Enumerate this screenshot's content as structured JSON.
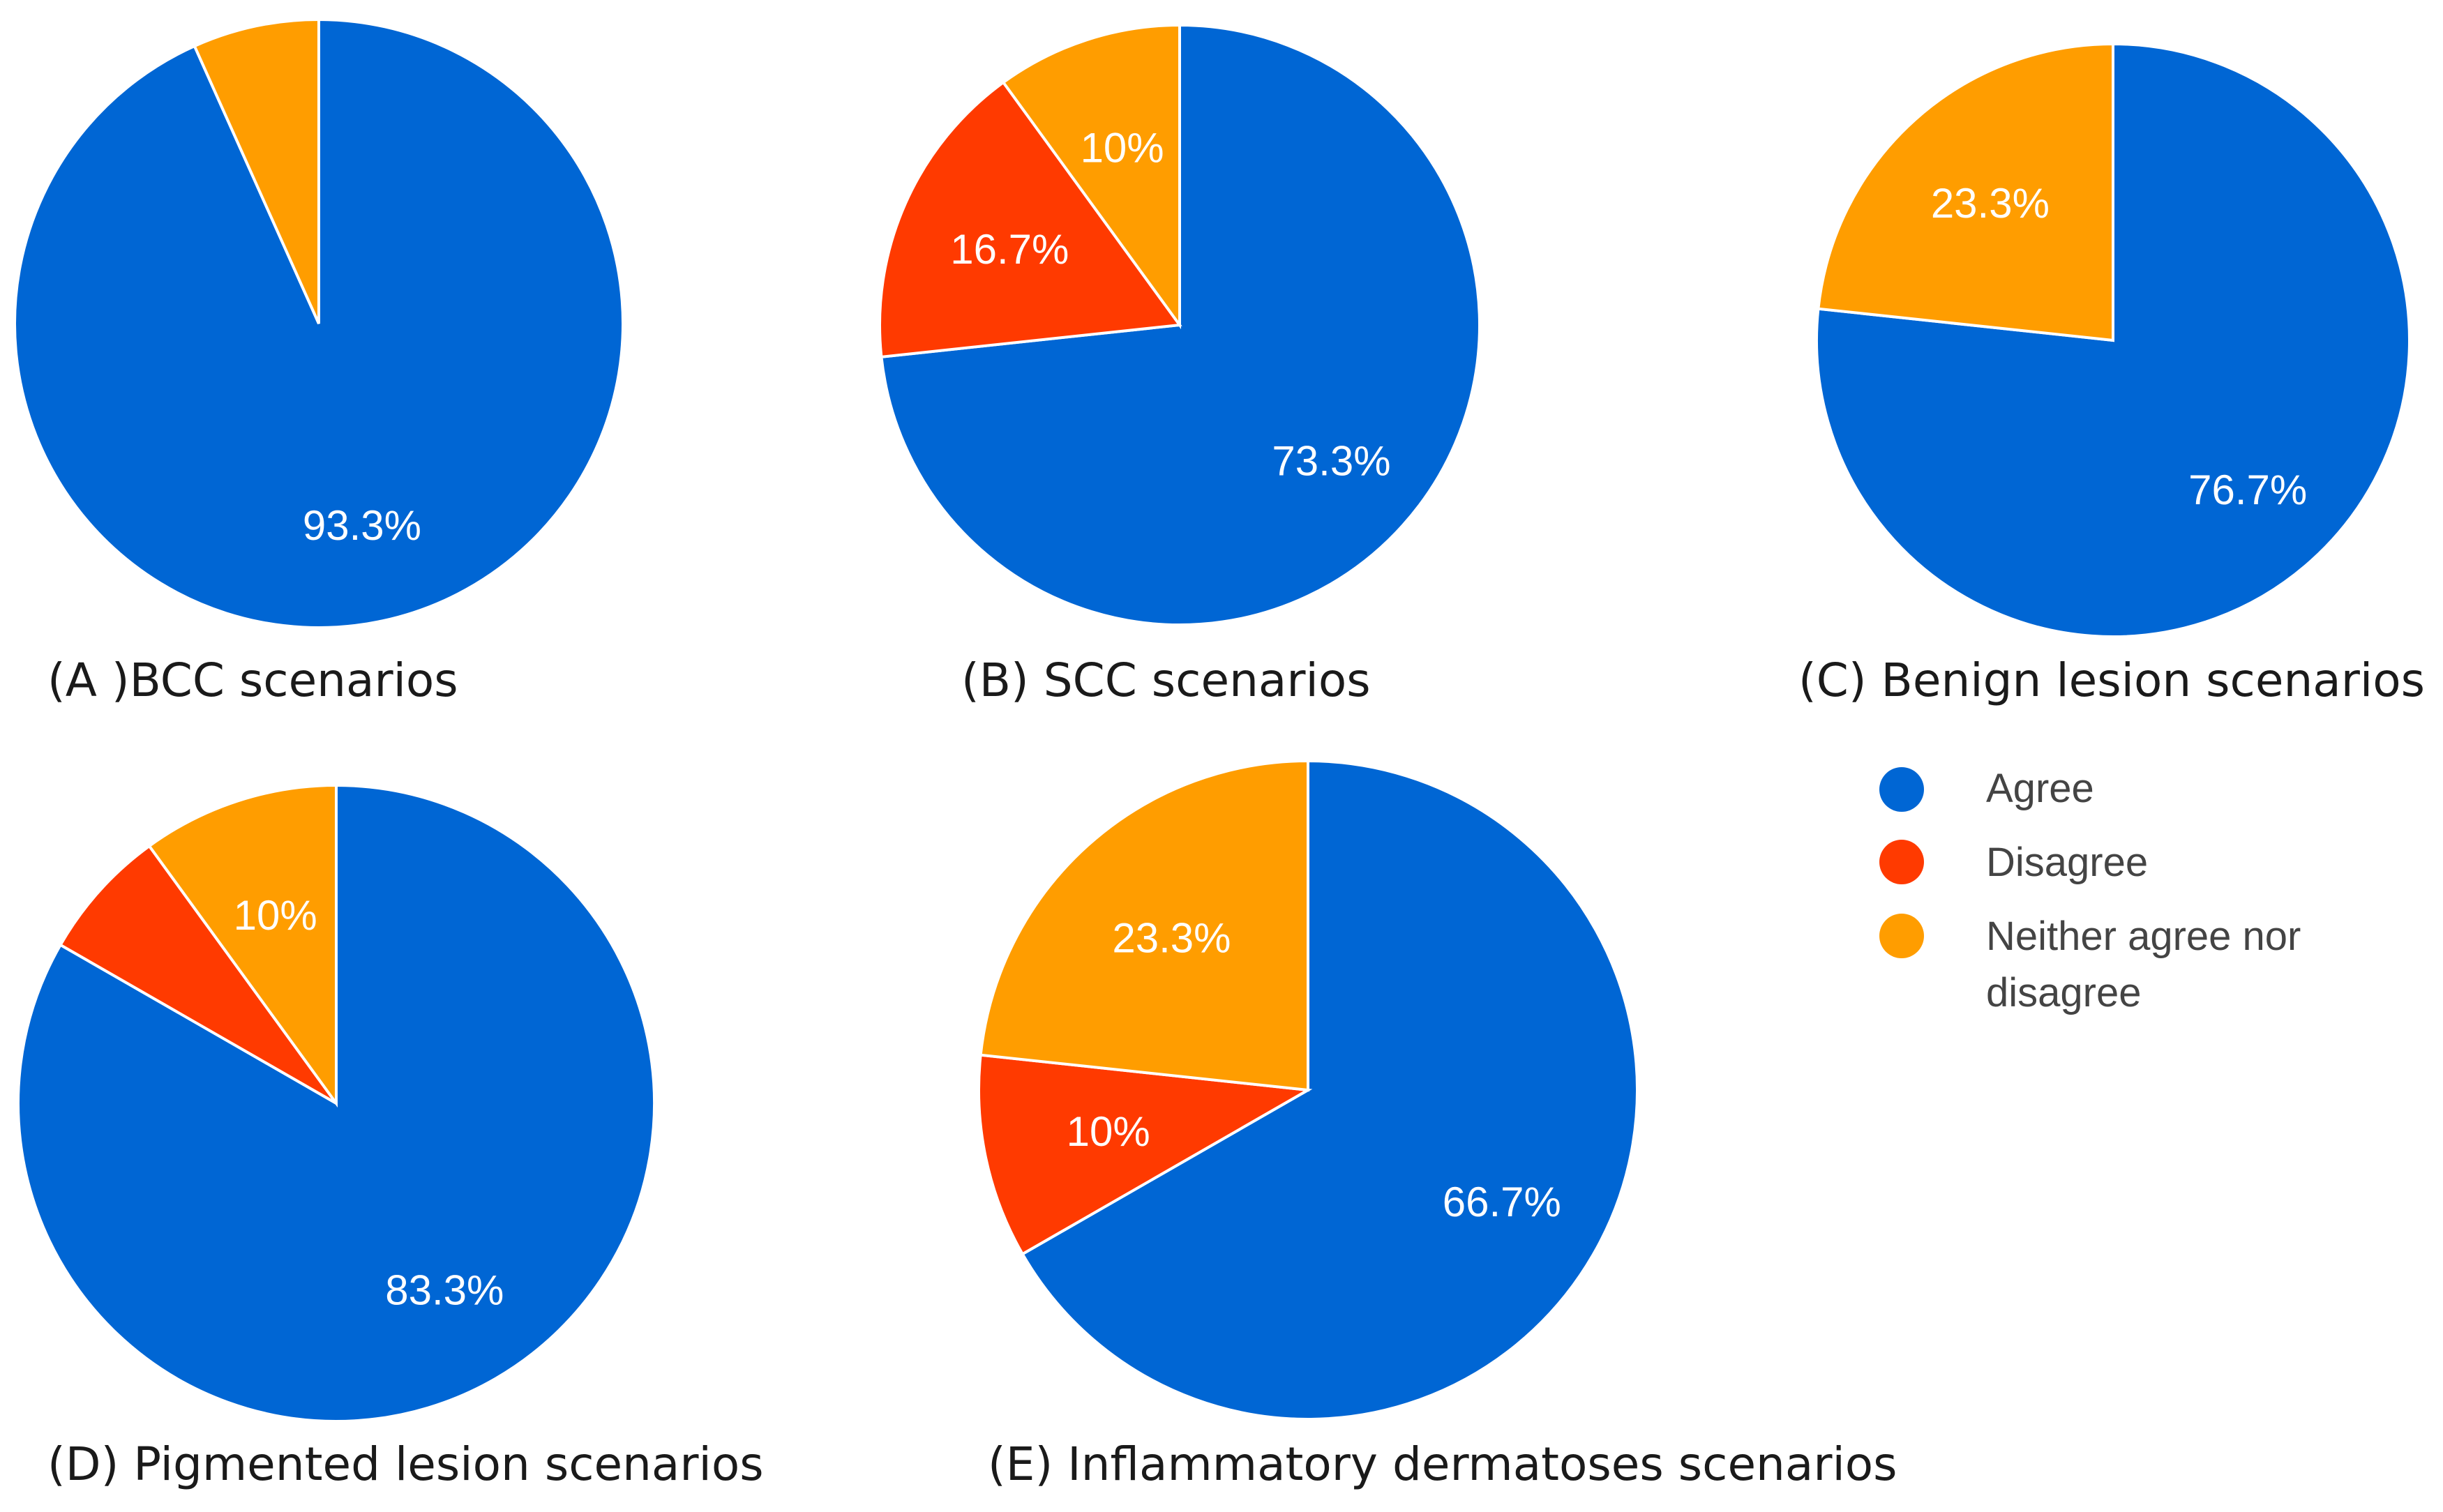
{
  "colors": {
    "agree": "#0066d4",
    "disagree": "#ff3a00",
    "neither": "#ff9d00"
  },
  "legend": {
    "items": [
      {
        "key": "agree",
        "lines": [
          "Agree"
        ]
      },
      {
        "key": "disagree",
        "lines": [
          "Disagree"
        ]
      },
      {
        "key": "neither",
        "lines": [
          "Neither agree nor",
          "disagree"
        ]
      }
    ]
  },
  "chart_data": [
    {
      "type": "pie",
      "caption": "(A )BCC scenarios",
      "categories": [
        "Agree",
        "Disagree",
        "Neither agree nor disagree"
      ],
      "values": [
        93.3,
        0,
        6.7
      ],
      "labels": [
        "93.3%",
        "",
        ""
      ]
    },
    {
      "type": "pie",
      "caption": "(B) SCC scenarios",
      "categories": [
        "Agree",
        "Disagree",
        "Neither agree nor disagree"
      ],
      "values": [
        73.3,
        16.7,
        10
      ],
      "labels": [
        "73.3%",
        "16.7%",
        "10%"
      ]
    },
    {
      "type": "pie",
      "caption": "(C) Benign lesion scenarios",
      "categories": [
        "Agree",
        "Disagree",
        "Neither agree nor disagree"
      ],
      "values": [
        76.7,
        0,
        23.3
      ],
      "labels": [
        "76.7%",
        "",
        "23.3%"
      ]
    },
    {
      "type": "pie",
      "caption": "(D) Pigmented lesion scenarios",
      "categories": [
        "Agree",
        "Disagree",
        "Neither agree nor disagree"
      ],
      "values": [
        83.3,
        6.7,
        10
      ],
      "labels": [
        "83.3%",
        "",
        "10%"
      ]
    },
    {
      "type": "pie",
      "caption": "(E) Inflammatory dermatoses scenarios",
      "categories": [
        "Agree",
        "Disagree",
        "Neither agree nor disagree"
      ],
      "values": [
        66.7,
        10,
        23.3
      ],
      "labels": [
        "66.7%",
        "10%",
        "23.3%"
      ]
    }
  ]
}
